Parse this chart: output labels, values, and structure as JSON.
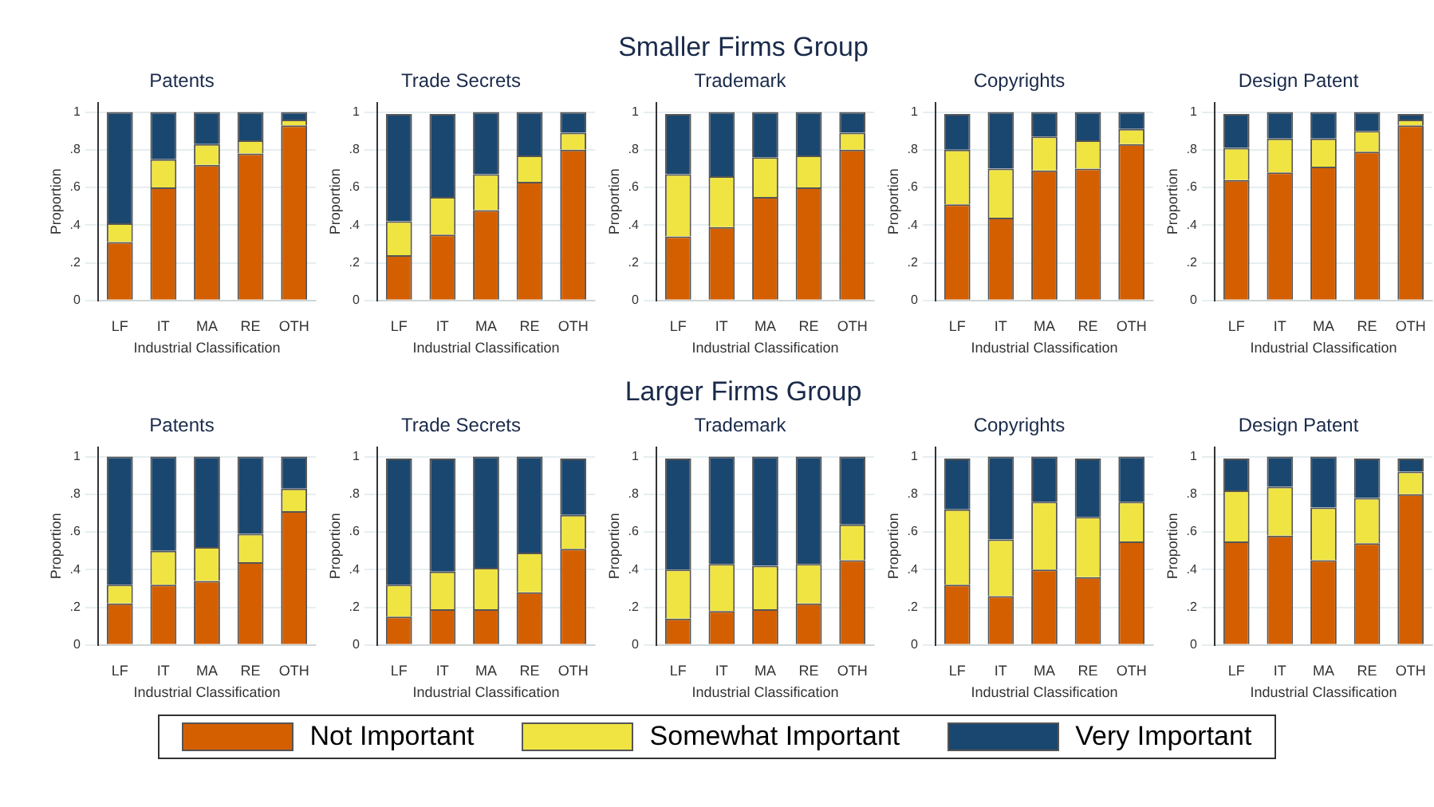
{
  "chart_data": [
    {
      "type": "bar",
      "stacked": true,
      "legend": "bottom",
      "title": "Patents",
      "categories": [
        "LF",
        "IT",
        "MA",
        "RE",
        "OTH"
      ],
      "xlabel": "Industrial Classification",
      "ylabel": "Proportion",
      "ylim": [
        0,
        1.05
      ],
      "yticks": [
        {
          "value": 0,
          "label": "0"
        },
        {
          "value": 0.2,
          "label": ".2"
        },
        {
          "value": 0.4,
          "label": ".4"
        },
        {
          "value": 0.6,
          "label": ".6"
        },
        {
          "value": 0.8,
          "label": ".8"
        },
        {
          "value": 1,
          "label": "1"
        }
      ],
      "grid": "y",
      "series": [
        {
          "name": "Not Important",
          "color": "#d45f00",
          "values": [
            0.31,
            0.6,
            0.72,
            0.78,
            0.93
          ]
        },
        {
          "name": "Somewhat Important",
          "color": "#f0e442",
          "values": [
            0.1,
            0.15,
            0.11,
            0.07,
            0.03
          ]
        },
        {
          "name": "Very Important",
          "color": "#1a476f",
          "values": [
            0.59,
            0.25,
            0.17,
            0.15,
            0.04
          ]
        }
      ]
    },
    {
      "type": "bar",
      "stacked": true,
      "legend": "bottom",
      "title": "Trade Secrets",
      "categories": [
        "LF",
        "IT",
        "MA",
        "RE",
        "OTH"
      ],
      "xlabel": "Industrial Classification",
      "ylabel": "Proportion",
      "ylim": [
        0,
        1.05
      ],
      "yticks": [
        {
          "value": 0,
          "label": "0"
        },
        {
          "value": 0.2,
          "label": ".2"
        },
        {
          "value": 0.4,
          "label": ".4"
        },
        {
          "value": 0.6,
          "label": ".6"
        },
        {
          "value": 0.8,
          "label": ".8"
        },
        {
          "value": 1,
          "label": "1"
        }
      ],
      "grid": "y",
      "series": [
        {
          "name": "Not Important",
          "color": "#d45f00",
          "values": [
            0.24,
            0.35,
            0.48,
            0.63,
            0.8
          ]
        },
        {
          "name": "Somewhat Important",
          "color": "#f0e442",
          "values": [
            0.18,
            0.2,
            0.19,
            0.14,
            0.09
          ]
        },
        {
          "name": "Very Important",
          "color": "#1a476f",
          "values": [
            0.57,
            0.44,
            0.33,
            0.23,
            0.11
          ]
        }
      ]
    },
    {
      "type": "bar",
      "stacked": true,
      "legend": "bottom",
      "subtitle": "Smaller Firms Group",
      "title": "Trademark",
      "categories": [
        "LF",
        "IT",
        "MA",
        "RE",
        "OTH"
      ],
      "xlabel": "Industrial Classification",
      "ylabel": "Proportion",
      "ylim": [
        0,
        1.05
      ],
      "yticks": [
        {
          "value": 0,
          "label": "0"
        },
        {
          "value": 0.2,
          "label": ".2"
        },
        {
          "value": 0.4,
          "label": ".4"
        },
        {
          "value": 0.6,
          "label": ".6"
        },
        {
          "value": 0.8,
          "label": ".8"
        },
        {
          "value": 1,
          "label": "1"
        }
      ],
      "grid": "y",
      "series": [
        {
          "name": "Not Important",
          "color": "#d45f00",
          "values": [
            0.34,
            0.39,
            0.55,
            0.6,
            0.8
          ]
        },
        {
          "name": "Somewhat Important",
          "color": "#f0e442",
          "values": [
            0.33,
            0.27,
            0.21,
            0.17,
            0.09
          ]
        },
        {
          "name": "Very Important",
          "color": "#1a476f",
          "values": [
            0.32,
            0.34,
            0.24,
            0.23,
            0.11
          ]
        }
      ]
    },
    {
      "type": "bar",
      "stacked": true,
      "legend": "bottom",
      "title": "Copyrights",
      "categories": [
        "LF",
        "IT",
        "MA",
        "RE",
        "OTH"
      ],
      "xlabel": "Industrial Classification",
      "ylabel": "Proportion",
      "ylim": [
        0,
        1.05
      ],
      "yticks": [
        {
          "value": 0,
          "label": "0"
        },
        {
          "value": 0.2,
          "label": ".2"
        },
        {
          "value": 0.4,
          "label": ".4"
        },
        {
          "value": 0.6,
          "label": ".6"
        },
        {
          "value": 0.8,
          "label": ".8"
        },
        {
          "value": 1,
          "label": "1"
        }
      ],
      "grid": "y",
      "series": [
        {
          "name": "Not Important",
          "color": "#d45f00",
          "values": [
            0.51,
            0.44,
            0.69,
            0.7,
            0.83
          ]
        },
        {
          "name": "Somewhat Important",
          "color": "#f0e442",
          "values": [
            0.29,
            0.26,
            0.18,
            0.15,
            0.08
          ]
        },
        {
          "name": "Very Important",
          "color": "#1a476f",
          "values": [
            0.19,
            0.3,
            0.13,
            0.15,
            0.09
          ]
        }
      ]
    },
    {
      "type": "bar",
      "stacked": true,
      "legend": "bottom",
      "title": "Design Patent",
      "categories": [
        "LF",
        "IT",
        "MA",
        "RE",
        "OTH"
      ],
      "xlabel": "Industrial Classification",
      "ylabel": "Proportion",
      "ylim": [
        0,
        1.05
      ],
      "yticks": [
        {
          "value": 0,
          "label": "0"
        },
        {
          "value": 0.2,
          "label": ".2"
        },
        {
          "value": 0.4,
          "label": ".4"
        },
        {
          "value": 0.6,
          "label": ".6"
        },
        {
          "value": 0.8,
          "label": ".8"
        },
        {
          "value": 1,
          "label": "1"
        }
      ],
      "grid": "y",
      "series": [
        {
          "name": "Not Important",
          "color": "#d45f00",
          "values": [
            0.64,
            0.68,
            0.71,
            0.79,
            0.93
          ]
        },
        {
          "name": "Somewhat Important",
          "color": "#f0e442",
          "values": [
            0.17,
            0.18,
            0.15,
            0.11,
            0.03
          ]
        },
        {
          "name": "Very Important",
          "color": "#1a476f",
          "values": [
            0.18,
            0.14,
            0.14,
            0.1,
            0.03
          ]
        }
      ]
    },
    {
      "type": "bar",
      "stacked": true,
      "legend": "bottom",
      "title": "Patents",
      "categories": [
        "LF",
        "IT",
        "MA",
        "RE",
        "OTH"
      ],
      "xlabel": "Industrial Classification",
      "ylabel": "Proportion",
      "ylim": [
        0,
        1.05
      ],
      "yticks": [
        {
          "value": 0,
          "label": "0"
        },
        {
          "value": 0.2,
          "label": ".2"
        },
        {
          "value": 0.4,
          "label": ".4"
        },
        {
          "value": 0.6,
          "label": ".6"
        },
        {
          "value": 0.8,
          "label": ".8"
        },
        {
          "value": 1,
          "label": "1"
        }
      ],
      "grid": "y",
      "series": [
        {
          "name": "Not Important",
          "color": "#d45f00",
          "values": [
            0.22,
            0.32,
            0.34,
            0.44,
            0.71
          ]
        },
        {
          "name": "Somewhat Important",
          "color": "#f0e442",
          "values": [
            0.1,
            0.18,
            0.18,
            0.15,
            0.12
          ]
        },
        {
          "name": "Very Important",
          "color": "#1a476f",
          "values": [
            0.68,
            0.5,
            0.48,
            0.41,
            0.17
          ]
        }
      ]
    },
    {
      "type": "bar",
      "stacked": true,
      "legend": "bottom",
      "title": "Trade Secrets",
      "categories": [
        "LF",
        "IT",
        "MA",
        "RE",
        "OTH"
      ],
      "xlabel": "Industrial Classification",
      "ylabel": "Proportion",
      "ylim": [
        0,
        1.05
      ],
      "yticks": [
        {
          "value": 0,
          "label": "0"
        },
        {
          "value": 0.2,
          "label": ".2"
        },
        {
          "value": 0.4,
          "label": ".4"
        },
        {
          "value": 0.6,
          "label": ".6"
        },
        {
          "value": 0.8,
          "label": ".8"
        },
        {
          "value": 1,
          "label": "1"
        }
      ],
      "grid": "y",
      "series": [
        {
          "name": "Not Important",
          "color": "#d45f00",
          "values": [
            0.15,
            0.19,
            0.19,
            0.28,
            0.51
          ]
        },
        {
          "name": "Somewhat Important",
          "color": "#f0e442",
          "values": [
            0.17,
            0.2,
            0.22,
            0.21,
            0.18
          ]
        },
        {
          "name": "Very Important",
          "color": "#1a476f",
          "values": [
            0.67,
            0.6,
            0.59,
            0.51,
            0.3
          ]
        }
      ]
    },
    {
      "type": "bar",
      "stacked": true,
      "legend": "bottom",
      "subtitle": "Larger Firms Group",
      "title": "Trademark",
      "categories": [
        "LF",
        "IT",
        "MA",
        "RE",
        "OTH"
      ],
      "xlabel": "Industrial Classification",
      "ylabel": "Proportion",
      "ylim": [
        0,
        1.05
      ],
      "yticks": [
        {
          "value": 0,
          "label": "0"
        },
        {
          "value": 0.2,
          "label": ".2"
        },
        {
          "value": 0.4,
          "label": ".4"
        },
        {
          "value": 0.6,
          "label": ".6"
        },
        {
          "value": 0.8,
          "label": ".8"
        },
        {
          "value": 1,
          "label": "1"
        }
      ],
      "grid": "y",
      "series": [
        {
          "name": "Not Important",
          "color": "#d45f00",
          "values": [
            0.14,
            0.18,
            0.19,
            0.22,
            0.45
          ]
        },
        {
          "name": "Somewhat Important",
          "color": "#f0e442",
          "values": [
            0.26,
            0.25,
            0.23,
            0.21,
            0.19
          ]
        },
        {
          "name": "Very Important",
          "color": "#1a476f",
          "values": [
            0.59,
            0.57,
            0.58,
            0.57,
            0.36
          ]
        }
      ]
    },
    {
      "type": "bar",
      "stacked": true,
      "legend": "bottom",
      "title": "Copyrights",
      "categories": [
        "LF",
        "IT",
        "MA",
        "RE",
        "OTH"
      ],
      "xlabel": "Industrial Classification",
      "ylabel": "Proportion",
      "ylim": [
        0,
        1.05
      ],
      "yticks": [
        {
          "value": 0,
          "label": "0"
        },
        {
          "value": 0.2,
          "label": ".2"
        },
        {
          "value": 0.4,
          "label": ".4"
        },
        {
          "value": 0.6,
          "label": ".6"
        },
        {
          "value": 0.8,
          "label": ".8"
        },
        {
          "value": 1,
          "label": "1"
        }
      ],
      "grid": "y",
      "series": [
        {
          "name": "Not Important",
          "color": "#d45f00",
          "values": [
            0.32,
            0.26,
            0.4,
            0.36,
            0.55
          ]
        },
        {
          "name": "Somewhat Important",
          "color": "#f0e442",
          "values": [
            0.4,
            0.3,
            0.36,
            0.32,
            0.21
          ]
        },
        {
          "name": "Very Important",
          "color": "#1a476f",
          "values": [
            0.27,
            0.44,
            0.24,
            0.31,
            0.24
          ]
        }
      ]
    },
    {
      "type": "bar",
      "stacked": true,
      "legend": "bottom",
      "title": "Design Patent",
      "categories": [
        "LF",
        "IT",
        "MA",
        "RE",
        "OTH"
      ],
      "xlabel": "Industrial Classification",
      "ylabel": "Proportion",
      "ylim": [
        0,
        1.05
      ],
      "yticks": [
        {
          "value": 0,
          "label": "0"
        },
        {
          "value": 0.2,
          "label": ".2"
        },
        {
          "value": 0.4,
          "label": ".4"
        },
        {
          "value": 0.6,
          "label": ".6"
        },
        {
          "value": 0.8,
          "label": ".8"
        },
        {
          "value": 1,
          "label": "1"
        }
      ],
      "grid": "y",
      "series": [
        {
          "name": "Not Important",
          "color": "#d45f00",
          "values": [
            0.55,
            0.58,
            0.45,
            0.54,
            0.8
          ]
        },
        {
          "name": "Somewhat Important",
          "color": "#f0e442",
          "values": [
            0.27,
            0.26,
            0.28,
            0.24,
            0.12
          ]
        },
        {
          "name": "Very Important",
          "color": "#1a476f",
          "values": [
            0.17,
            0.16,
            0.27,
            0.21,
            0.07
          ]
        }
      ]
    }
  ]
}
